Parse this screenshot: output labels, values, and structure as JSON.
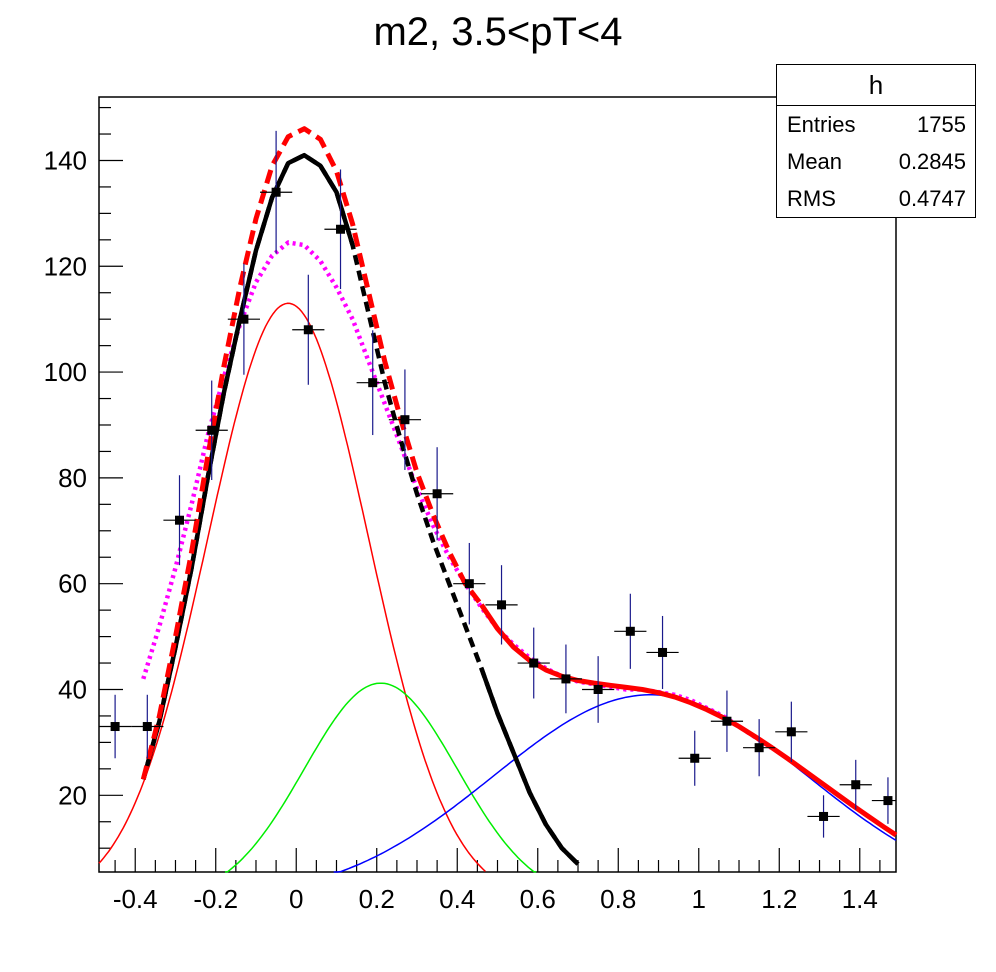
{
  "chart_data": {
    "type": "scatter",
    "title": "m2, 3.5<pT<4",
    "xlim": [
      -0.49,
      1.49
    ],
    "ylim": [
      5.5,
      152
    ],
    "xticks": [
      "-0.4",
      "-0.2",
      "0",
      "0.2",
      "0.4",
      "0.6",
      "0.8",
      "1",
      "1.2",
      "1.4"
    ],
    "xtick_values": [
      -0.4,
      -0.2,
      0,
      0.2,
      0.4,
      0.6,
      0.8,
      1,
      1.2,
      1.4
    ],
    "yticks": [
      "20",
      "40",
      "60",
      "80",
      "100",
      "120",
      "140"
    ],
    "ytick_values": [
      20,
      40,
      60,
      80,
      100,
      120,
      140
    ],
    "grid": false,
    "stats": {
      "name": "h",
      "entries_label": "Entries",
      "entries": "1755",
      "mean_label": "Mean",
      "mean": "0.2845",
      "rms_label": "RMS",
      "rms": "0.4747"
    },
    "histogram_points": {
      "x_halfwidth": 0.04,
      "points": [
        {
          "x": -0.45,
          "y": 33,
          "err": 6
        },
        {
          "x": -0.37,
          "y": 33,
          "err": 6
        },
        {
          "x": -0.29,
          "y": 72,
          "err": 8.5
        },
        {
          "x": -0.21,
          "y": 89,
          "err": 9.4
        },
        {
          "x": -0.13,
          "y": 110,
          "err": 10.5
        },
        {
          "x": -0.05,
          "y": 134,
          "err": 11.6
        },
        {
          "x": 0.03,
          "y": 108,
          "err": 10.4
        },
        {
          "x": 0.11,
          "y": 127,
          "err": 11.3
        },
        {
          "x": 0.19,
          "y": 98,
          "err": 9.9
        },
        {
          "x": 0.27,
          "y": 91,
          "err": 9.5
        },
        {
          "x": 0.35,
          "y": 77,
          "err": 8.8
        },
        {
          "x": 0.43,
          "y": 60,
          "err": 7.7
        },
        {
          "x": 0.51,
          "y": 56,
          "err": 7.5
        },
        {
          "x": 0.59,
          "y": 45,
          "err": 6.7
        },
        {
          "x": 0.67,
          "y": 42,
          "err": 6.5
        },
        {
          "x": 0.75,
          "y": 40,
          "err": 6.3
        },
        {
          "x": 0.83,
          "y": 51,
          "err": 7.1
        },
        {
          "x": 0.91,
          "y": 47,
          "err": 6.9
        },
        {
          "x": 0.99,
          "y": 27,
          "err": 5.2
        },
        {
          "x": 1.07,
          "y": 34,
          "err": 5.8
        },
        {
          "x": 1.15,
          "y": 29,
          "err": 5.4
        },
        {
          "x": 1.23,
          "y": 32,
          "err": 5.7
        },
        {
          "x": 1.31,
          "y": 16,
          "err": 4
        },
        {
          "x": 1.39,
          "y": 22,
          "err": 4.7
        },
        {
          "x": 1.47,
          "y": 19,
          "err": 4.4
        }
      ]
    },
    "curves": [
      {
        "id": "red-gaussian",
        "color": "#ff0000",
        "width": 1.5,
        "dash": "",
        "model": {
          "kind": "gauss",
          "amp": 113,
          "mu": -0.02,
          "sigma": 0.2
        },
        "xrange": [
          -0.49,
          0.47
        ]
      },
      {
        "id": "green-gaussian",
        "color": "#00ee00",
        "width": 1.5,
        "dash": "",
        "model": {
          "kind": "gauss",
          "amp": 41.2,
          "mu": 0.21,
          "sigma": 0.19
        },
        "xrange": [
          -0.32,
          0.72
        ]
      },
      {
        "id": "blue-background",
        "color": "#0000ff",
        "width": 1.5,
        "dash": "",
        "model": {
          "kind": "gauss",
          "amp": 39,
          "mu": 0.88,
          "sigma": 0.39
        },
        "xrange": [
          0,
          1.49
        ]
      },
      {
        "id": "magenta-dotted",
        "color": "#ff00ff",
        "width": 4.5,
        "dash": "3 4",
        "points": [
          [
            -0.38,
            42
          ],
          [
            -0.34,
            52
          ],
          [
            -0.3,
            63
          ],
          [
            -0.26,
            75
          ],
          [
            -0.22,
            88
          ],
          [
            -0.18,
            99
          ],
          [
            -0.14,
            109
          ],
          [
            -0.1,
            117
          ],
          [
            -0.06,
            122
          ],
          [
            -0.02,
            124.5
          ],
          [
            0.02,
            124
          ],
          [
            0.06,
            121
          ],
          [
            0.1,
            116
          ],
          [
            0.14,
            110
          ],
          [
            0.18,
            102
          ],
          [
            0.22,
            94
          ],
          [
            0.26,
            86
          ],
          [
            0.3,
            78
          ],
          [
            0.34,
            71
          ],
          [
            0.38,
            65
          ],
          [
            0.42,
            60
          ],
          [
            0.46,
            55.5
          ],
          [
            0.5,
            51.5
          ],
          [
            0.54,
            48.5
          ],
          [
            0.58,
            46
          ],
          [
            0.62,
            44
          ],
          [
            0.66,
            42.5
          ],
          [
            0.7,
            41.5
          ],
          [
            0.74,
            41
          ],
          [
            0.78,
            40.5
          ],
          [
            0.82,
            40
          ],
          [
            0.86,
            40
          ],
          [
            0.9,
            39.5
          ],
          [
            0.94,
            39
          ],
          [
            0.98,
            38
          ],
          [
            1.02,
            36.5
          ],
          [
            1.06,
            35
          ],
          [
            1.1,
            33
          ],
          [
            1.14,
            31
          ],
          [
            1.18,
            29
          ]
        ]
      },
      {
        "id": "black-solid",
        "color": "#000000",
        "width": 4.5,
        "dash": "",
        "points": [
          [
            -0.38,
            23
          ],
          [
            -0.34,
            34
          ],
          [
            -0.3,
            48
          ],
          [
            -0.26,
            63
          ],
          [
            -0.22,
            80
          ],
          [
            -0.18,
            96
          ],
          [
            -0.14,
            110
          ],
          [
            -0.1,
            123
          ],
          [
            -0.06,
            133
          ],
          [
            -0.02,
            139.5
          ],
          [
            0.02,
            141
          ],
          [
            0.06,
            139
          ],
          [
            0.1,
            134
          ],
          [
            0.14,
            124
          ]
        ]
      },
      {
        "id": "black-dashed",
        "color": "#000000",
        "width": 4.5,
        "dash": "10 6",
        "points": [
          [
            -0.38,
            23
          ],
          [
            -0.34,
            34
          ],
          [
            -0.3,
            48
          ],
          [
            -0.26,
            63
          ],
          [
            -0.22,
            80
          ],
          [
            -0.18,
            96
          ],
          [
            -0.14,
            110
          ],
          [
            -0.1,
            123
          ],
          [
            -0.06,
            133
          ],
          [
            -0.02,
            139.5
          ],
          [
            0.02,
            141
          ],
          [
            0.06,
            139
          ],
          [
            0.1,
            134
          ],
          [
            0.14,
            124
          ],
          [
            0.18,
            111
          ],
          [
            0.22,
            98
          ],
          [
            0.26,
            87
          ],
          [
            0.3,
            77
          ],
          [
            0.34,
            68
          ],
          [
            0.38,
            60
          ],
          [
            0.42,
            52
          ],
          [
            0.46,
            44
          ],
          [
            0.5,
            35.5
          ],
          [
            0.54,
            28
          ],
          [
            0.58,
            20.5
          ],
          [
            0.62,
            14.5
          ],
          [
            0.66,
            10
          ],
          [
            0.7,
            7
          ]
        ]
      },
      {
        "id": "black-tail",
        "color": "#000000",
        "width": 4.5,
        "dash": "",
        "points": [
          [
            0.46,
            44
          ],
          [
            0.5,
            35.5
          ],
          [
            0.54,
            28
          ],
          [
            0.58,
            20.5
          ],
          [
            0.62,
            14.5
          ],
          [
            0.66,
            10
          ],
          [
            0.7,
            7
          ]
        ]
      },
      {
        "id": "red-thick-dashed",
        "color": "#ff0000",
        "width": 5,
        "dash": "14 7",
        "points": [
          [
            -0.38,
            23
          ],
          [
            -0.34,
            35
          ],
          [
            -0.3,
            50
          ],
          [
            -0.26,
            66
          ],
          [
            -0.22,
            84
          ],
          [
            -0.18,
            101
          ],
          [
            -0.14,
            116
          ],
          [
            -0.1,
            129
          ],
          [
            -0.06,
            139
          ],
          [
            -0.02,
            144.5
          ],
          [
            0.02,
            146
          ],
          [
            0.06,
            144
          ],
          [
            0.1,
            138
          ],
          [
            0.14,
            128
          ],
          [
            0.18,
            115
          ],
          [
            0.22,
            102
          ],
          [
            0.26,
            91
          ],
          [
            0.3,
            81
          ],
          [
            0.34,
            73
          ],
          [
            0.38,
            66
          ],
          [
            0.42,
            60
          ],
          [
            0.46,
            56
          ]
        ]
      },
      {
        "id": "red-thick-solid",
        "color": "#ff0000",
        "width": 5,
        "dash": "",
        "points": [
          [
            0.46,
            56
          ],
          [
            0.5,
            51.5
          ],
          [
            0.54,
            48
          ],
          [
            0.58,
            45.5
          ],
          [
            0.62,
            43.7
          ],
          [
            0.66,
            42.5
          ],
          [
            0.7,
            41.7
          ],
          [
            0.74,
            41.2
          ],
          [
            0.78,
            40.8
          ],
          [
            0.82,
            40.4
          ],
          [
            0.86,
            40
          ],
          [
            0.9,
            39.4
          ],
          [
            0.94,
            38.6
          ],
          [
            0.98,
            37.5
          ],
          [
            1.02,
            36.2
          ],
          [
            1.06,
            34.7
          ],
          [
            1.1,
            33
          ],
          [
            1.14,
            31.1
          ],
          [
            1.18,
            29.1
          ],
          [
            1.22,
            27
          ],
          [
            1.26,
            24.8
          ],
          [
            1.3,
            22.6
          ],
          [
            1.34,
            20.4
          ],
          [
            1.38,
            18.2
          ],
          [
            1.42,
            16.1
          ],
          [
            1.46,
            14
          ],
          [
            1.49,
            12.5
          ]
        ]
      }
    ]
  }
}
